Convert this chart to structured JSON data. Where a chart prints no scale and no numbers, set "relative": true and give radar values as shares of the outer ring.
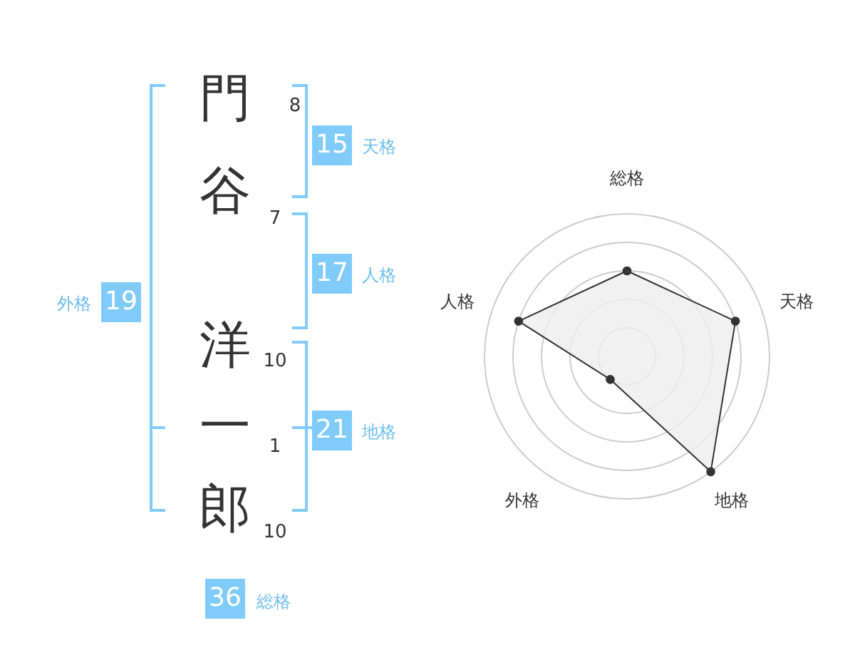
{
  "chart_data": [
    {
      "type": "other",
      "annotations": [
        "門",
        "8",
        "谷",
        "7",
        "洋",
        "10",
        "一",
        "1",
        "郎",
        "10",
        "15",
        "天格",
        "17",
        "人格",
        "21",
        "地格",
        "19",
        "外格",
        "36",
        "総格"
      ]
    },
    {
      "type": "radar",
      "categories": [
        "総格",
        "天格",
        "地格",
        "外格",
        "人格"
      ],
      "relative": true,
      "grid": true,
      "marker": "circle",
      "series": [
        {
          "color": "#333333",
          "values": [
            0.6,
            0.8,
            1.0,
            0.2,
            0.8
          ]
        }
      ]
    }
  ]
}
